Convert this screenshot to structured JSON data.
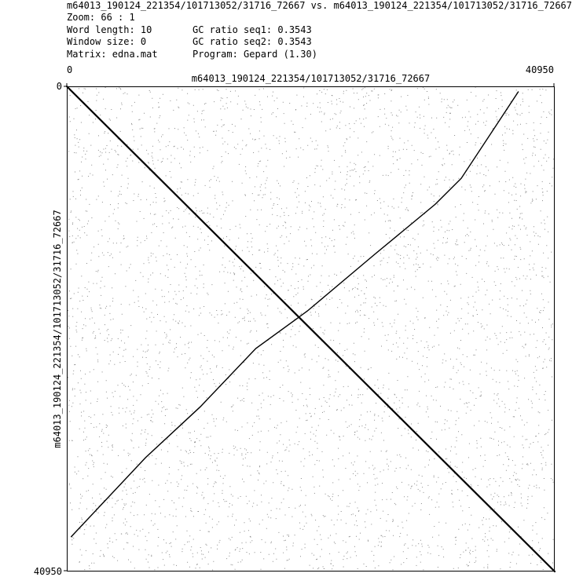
{
  "header": {
    "title": "m64013_190124_221354/101713052/31716_72667 vs. m64013_190124_221354/101713052/31716_72667",
    "zoom": "Zoom: 66 : 1",
    "word_length": "Word length: 10",
    "window_size": "Window size: 0",
    "matrix": "Matrix: edna.mat",
    "gc_seq1": "GC ratio seq1: 0.3543",
    "gc_seq2": "GC ratio seq2: 0.3543",
    "program": "Program: Gepard (1.30)"
  },
  "chart_data": {
    "type": "scatter",
    "xlabel": "m64013_190124_221354/101713052/31716_72667",
    "ylabel": "m64013_190124_221354/101713052/31716_72667",
    "xlim": [
      0,
      40950
    ],
    "ylim": [
      0,
      40950
    ],
    "x_ticks": [
      "0",
      "40950"
    ],
    "y_ticks": [
      "0",
      "40950"
    ],
    "y_inverted": true,
    "grid": false,
    "series": [
      {
        "x": [
          0,
          40950
        ],
        "y": [
          0,
          40950
        ]
      },
      {
        "x": [
          378,
          6611,
          11206,
          15863,
          20205,
          25807,
          30905,
          33108,
          37891
        ],
        "y": [
          38009,
          31335,
          27051,
          22122,
          18952,
          14207,
          9965,
          7762,
          466
        ]
      }
    ],
    "colors": {
      "plot": "#000000",
      "noise": "#000000"
    }
  }
}
